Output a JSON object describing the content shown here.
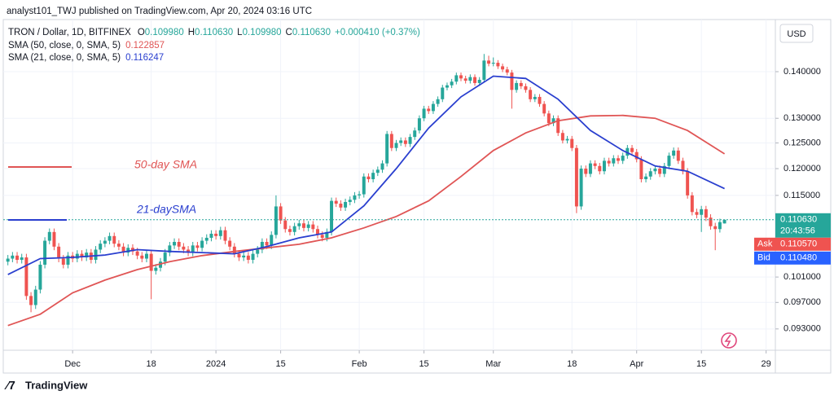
{
  "header": {
    "publisher": "analyst101_TWJ published on TradingView.com, Apr 20, 2024 03:16 UTC",
    "currency": "USD",
    "brand": "TradingView"
  },
  "chart_data": {
    "type": "candlestick",
    "title": "TRON / Dollar, 1D, BITFINEX",
    "ohlc": [
      {
        "key": "O",
        "value": "0.109980"
      },
      {
        "key": "H",
        "value": "0.110630"
      },
      {
        "key": "L",
        "value": "0.109980"
      },
      {
        "key": "C",
        "value": "0.110630"
      }
    ],
    "change": "+0.000410 (+0.37%)",
    "up_color": "#26a69a",
    "down_color": "#ef5350",
    "log_scale": true,
    "grid": true,
    "x": [
      "2023-11-17",
      "2023-11-18",
      "2023-11-19",
      "2023-11-20",
      "2023-11-21",
      "2023-11-22",
      "2023-11-23",
      "2023-11-24",
      "2023-11-25",
      "2023-11-26",
      "2023-11-27",
      "2023-11-28",
      "2023-11-29",
      "2023-11-30",
      "2023-12-01",
      "2023-12-02",
      "2023-12-03",
      "2023-12-04",
      "2023-12-05",
      "2023-12-06",
      "2023-12-07",
      "2023-12-08",
      "2023-12-09",
      "2023-12-10",
      "2023-12-11",
      "2023-12-12",
      "2023-12-13",
      "2023-12-14",
      "2023-12-15",
      "2023-12-16",
      "2023-12-17",
      "2023-12-18",
      "2023-12-19",
      "2023-12-20",
      "2023-12-21",
      "2023-12-22",
      "2023-12-23",
      "2023-12-24",
      "2023-12-25",
      "2023-12-26",
      "2023-12-27",
      "2023-12-28",
      "2023-12-29",
      "2023-12-30",
      "2023-12-31",
      "2024-01-01",
      "2024-01-02",
      "2024-01-03",
      "2024-01-04",
      "2024-01-05",
      "2024-01-06",
      "2024-01-07",
      "2024-01-08",
      "2024-01-09",
      "2024-01-10",
      "2024-01-11",
      "2024-01-12",
      "2024-01-13",
      "2024-01-14",
      "2024-01-15",
      "2024-01-16",
      "2024-01-17",
      "2024-01-18",
      "2024-01-19",
      "2024-01-20",
      "2024-01-21",
      "2024-01-22",
      "2024-01-23",
      "2024-01-24",
      "2024-01-25",
      "2024-01-26",
      "2024-01-27",
      "2024-01-28",
      "2024-01-29",
      "2024-01-30",
      "2024-01-31",
      "2024-02-01",
      "2024-02-02",
      "2024-02-03",
      "2024-02-04",
      "2024-02-05",
      "2024-02-06",
      "2024-02-07",
      "2024-02-08",
      "2024-02-09",
      "2024-02-10",
      "2024-02-11",
      "2024-02-12",
      "2024-02-13",
      "2024-02-14",
      "2024-02-15",
      "2024-02-16",
      "2024-02-17",
      "2024-02-18",
      "2024-02-19",
      "2024-02-20",
      "2024-02-21",
      "2024-02-22",
      "2024-02-23",
      "2024-02-24",
      "2024-02-25",
      "2024-02-26",
      "2024-02-27",
      "2024-02-28",
      "2024-02-29",
      "2024-03-01",
      "2024-03-02",
      "2024-03-03",
      "2024-03-04",
      "2024-03-05",
      "2024-03-06",
      "2024-03-07",
      "2024-03-08",
      "2024-03-09",
      "2024-03-10",
      "2024-03-11",
      "2024-03-12",
      "2024-03-13",
      "2024-03-14",
      "2024-03-15",
      "2024-03-16",
      "2024-03-17",
      "2024-03-18",
      "2024-03-19",
      "2024-03-20",
      "2024-03-21",
      "2024-03-22",
      "2024-03-23",
      "2024-03-24",
      "2024-03-25",
      "2024-03-26",
      "2024-03-27",
      "2024-03-28",
      "2024-03-29",
      "2024-03-30",
      "2024-03-31",
      "2024-04-01",
      "2024-04-02",
      "2024-04-03",
      "2024-04-04",
      "2024-04-05",
      "2024-04-06",
      "2024-04-07",
      "2024-04-08",
      "2024-04-09",
      "2024-04-10",
      "2024-04-11",
      "2024-04-12",
      "2024-04-13",
      "2024-04-14",
      "2024-04-15",
      "2024-04-16",
      "2024-04-17",
      "2024-04-18",
      "2024-04-19",
      "2024-04-20"
    ],
    "open": [
      0.1035,
      0.104,
      0.1045,
      0.1038,
      0.1042,
      0.098,
      0.0966,
      0.099,
      0.103,
      0.107,
      0.1085,
      0.106,
      0.104,
      0.103,
      0.1045,
      0.104,
      0.1048,
      0.1042,
      0.105,
      0.1038,
      0.1055,
      0.1065,
      0.107,
      0.1078,
      0.1065,
      0.106,
      0.105,
      0.1058,
      0.1052,
      0.1045,
      0.104,
      0.1048,
      0.102,
      0.1025,
      0.1035,
      0.105,
      0.1062,
      0.1068,
      0.106,
      0.1055,
      0.105,
      0.1062,
      0.1058,
      0.107,
      0.1075,
      0.1082,
      0.1078,
      0.1088,
      0.107,
      0.106,
      0.1048,
      0.1042,
      0.1045,
      0.1038,
      0.1048,
      0.1055,
      0.1068,
      0.1062,
      0.108,
      0.113,
      0.1105,
      0.109,
      0.1085,
      0.1095,
      0.11,
      0.1092,
      0.1098,
      0.109,
      0.108,
      0.1075,
      0.1085,
      0.114,
      0.1135,
      0.1128,
      0.1138,
      0.1142,
      0.115,
      0.1152,
      0.1185,
      0.118,
      0.1192,
      0.1198,
      0.121,
      0.1268,
      0.124,
      0.125,
      0.1255,
      0.1248,
      0.1262,
      0.1275,
      0.13,
      0.132,
      0.1315,
      0.133,
      0.134,
      0.1365,
      0.137,
      0.1378,
      0.1392,
      0.1385,
      0.138,
      0.1388,
      0.1375,
      0.1382,
      0.1425,
      0.1418,
      0.142,
      0.1412,
      0.1405,
      0.1398,
      0.136,
      0.1375,
      0.1368,
      0.136,
      0.134,
      0.1345,
      0.133,
      0.131,
      0.129,
      0.13,
      0.127,
      0.1255,
      0.1258,
      0.124,
      0.113,
      0.12,
      0.119,
      0.121,
      0.1205,
      0.1195,
      0.1215,
      0.121,
      0.122,
      0.1215,
      0.1225,
      0.124,
      0.1232,
      0.1218,
      0.118,
      0.1185,
      0.1195,
      0.12,
      0.119,
      0.1205,
      0.1225,
      0.1235,
      0.1215,
      0.1195,
      0.115,
      0.112,
      0.1115,
      0.1125,
      0.111,
      0.1095,
      0.109,
      0.10998
    ],
    "high": [
      0.1046,
      0.1051,
      0.1051,
      0.1048,
      0.1048,
      0.0986,
      0.0996,
      0.1036,
      0.1076,
      0.1091,
      0.1091,
      0.1066,
      0.1046,
      0.1051,
      0.1051,
      0.1054,
      0.1054,
      0.1056,
      0.1056,
      0.1061,
      0.1071,
      0.1076,
      0.1084,
      0.1084,
      0.1071,
      0.1066,
      0.1064,
      0.1064,
      0.1058,
      0.1051,
      0.1054,
      0.1054,
      0.1031,
      0.1041,
      0.1056,
      0.1068,
      0.1074,
      0.1074,
      0.1066,
      0.1061,
      0.1068,
      0.1068,
      0.1076,
      0.1081,
      0.1088,
      0.1088,
      0.1094,
      0.1094,
      0.1076,
      0.1066,
      0.1054,
      0.1051,
      0.1051,
      0.1054,
      0.1061,
      0.1074,
      0.1074,
      0.1086,
      0.115,
      0.1136,
      0.1111,
      0.1096,
      0.1101,
      0.1106,
      0.1106,
      0.1104,
      0.1104,
      0.1096,
      0.1086,
      0.1091,
      0.1146,
      0.1146,
      0.1141,
      0.1144,
      0.1148,
      0.1156,
      0.1158,
      0.1191,
      0.1191,
      0.1198,
      0.1204,
      0.1216,
      0.1274,
      0.1274,
      0.1256,
      0.1261,
      0.1261,
      0.1268,
      0.1281,
      0.1306,
      0.1326,
      0.1326,
      0.1336,
      0.1346,
      0.1371,
      0.1376,
      0.1384,
      0.1398,
      0.1398,
      0.1391,
      0.1394,
      0.1394,
      0.1388,
      0.144,
      0.1436,
      0.1432,
      0.1426,
      0.1418,
      0.1411,
      0.1404,
      0.1381,
      0.1381,
      0.1374,
      0.1366,
      0.1351,
      0.1351,
      0.1336,
      0.1316,
      0.1306,
      0.1306,
      0.1276,
      0.1264,
      0.1264,
      0.1246,
      0.1206,
      0.1206,
      0.1216,
      0.1216,
      0.1211,
      0.1221,
      0.1221,
      0.1226,
      0.1226,
      0.1231,
      0.1246,
      0.1246,
      0.1238,
      0.1224,
      0.1191,
      0.1201,
      0.1206,
      0.1206,
      0.1211,
      0.1231,
      0.1241,
      0.1241,
      0.1221,
      0.1201,
      0.1156,
      0.1126,
      0.1131,
      0.1131,
      0.1116,
      0.1101,
      0.11082,
      0.11063
    ],
    "low": [
      0.1029,
      0.1034,
      0.1032,
      0.1032,
      0.0974,
      0.0955,
      0.096,
      0.0984,
      0.1024,
      0.1064,
      0.1054,
      0.1034,
      0.1024,
      0.1024,
      0.1034,
      0.1034,
      0.1036,
      0.1036,
      0.1032,
      0.1032,
      0.1049,
      0.1059,
      0.1064,
      0.1059,
      0.1054,
      0.1044,
      0.1044,
      0.1046,
      0.1039,
      0.1034,
      0.1034,
      0.0975,
      0.1014,
      0.1019,
      0.1029,
      0.1044,
      0.1056,
      0.1054,
      0.1049,
      0.1044,
      0.1044,
      0.1052,
      0.1052,
      0.1064,
      0.1069,
      0.1072,
      0.1072,
      0.1064,
      0.1054,
      0.1042,
      0.1036,
      0.1036,
      0.1032,
      0.1032,
      0.1042,
      0.1049,
      0.1056,
      0.1056,
      0.1074,
      0.1099,
      0.1084,
      0.1079,
      0.1079,
      0.1089,
      0.1086,
      0.1086,
      0.1084,
      0.1074,
      0.1069,
      0.1069,
      0.1079,
      0.1129,
      0.1122,
      0.1122,
      0.1132,
      0.1136,
      0.1144,
      0.1146,
      0.1174,
      0.1174,
      0.1186,
      0.1192,
      0.1204,
      0.1234,
      0.1234,
      0.1244,
      0.1242,
      0.1242,
      0.1256,
      0.1269,
      0.1294,
      0.1309,
      0.1309,
      0.1324,
      0.1334,
      0.1359,
      0.1364,
      0.1372,
      0.1379,
      0.1374,
      0.1374,
      0.1369,
      0.1369,
      0.1376,
      0.1412,
      0.1412,
      0.1406,
      0.1399,
      0.1392,
      0.132,
      0.1354,
      0.1362,
      0.1354,
      0.1334,
      0.1334,
      0.1324,
      0.1304,
      0.1284,
      0.1284,
      0.1264,
      0.1249,
      0.1249,
      0.1234,
      0.1118,
      0.1124,
      0.1184,
      0.1184,
      0.1199,
      0.1189,
      0.1189,
      0.1204,
      0.1204,
      0.1209,
      0.1209,
      0.1219,
      0.1226,
      0.1212,
      0.1174,
      0.1174,
      0.1179,
      0.1189,
      0.1184,
      0.1184,
      0.1199,
      0.1219,
      0.1209,
      0.1189,
      0.1144,
      0.1114,
      0.1109,
      0.1085,
      0.1104,
      0.1089,
      0.1054,
      0.1084,
      0.10998
    ],
    "close": [
      0.104,
      0.1045,
      0.1038,
      0.1042,
      0.098,
      0.0966,
      0.099,
      0.103,
      0.107,
      0.1085,
      0.106,
      0.104,
      0.103,
      0.1045,
      0.104,
      0.1048,
      0.1042,
      0.105,
      0.1038,
      0.1055,
      0.1065,
      0.107,
      0.1078,
      0.1065,
      0.106,
      0.105,
      0.1058,
      0.1052,
      0.1045,
      0.104,
      0.1048,
      0.102,
      0.1025,
      0.1035,
      0.105,
      0.1062,
      0.1068,
      0.106,
      0.1055,
      0.105,
      0.1062,
      0.1058,
      0.107,
      0.1075,
      0.1082,
      0.1078,
      0.1088,
      0.107,
      0.106,
      0.1048,
      0.1042,
      0.1045,
      0.1038,
      0.1048,
      0.1055,
      0.1068,
      0.1062,
      0.108,
      0.113,
      0.1105,
      0.109,
      0.1085,
      0.1095,
      0.11,
      0.1092,
      0.1098,
      0.109,
      0.108,
      0.1075,
      0.1085,
      0.114,
      0.1135,
      0.1128,
      0.1138,
      0.1142,
      0.115,
      0.1152,
      0.1185,
      0.118,
      0.1192,
      0.1198,
      0.121,
      0.1268,
      0.124,
      0.125,
      0.1255,
      0.1248,
      0.1262,
      0.1275,
      0.13,
      0.132,
      0.1315,
      0.133,
      0.134,
      0.1365,
      0.137,
      0.1378,
      0.1392,
      0.1385,
      0.138,
      0.1388,
      0.1375,
      0.1382,
      0.1425,
      0.1418,
      0.142,
      0.1412,
      0.1405,
      0.1398,
      0.136,
      0.1375,
      0.1368,
      0.136,
      0.134,
      0.1345,
      0.133,
      0.131,
      0.129,
      0.13,
      0.127,
      0.1255,
      0.1258,
      0.124,
      0.113,
      0.12,
      0.119,
      0.121,
      0.1205,
      0.1195,
      0.1215,
      0.121,
      0.122,
      0.1215,
      0.1225,
      0.124,
      0.1232,
      0.1218,
      0.118,
      0.1185,
      0.1195,
      0.12,
      0.119,
      0.1205,
      0.1225,
      0.1235,
      0.1215,
      0.1195,
      0.115,
      0.112,
      0.1115,
      0.1125,
      0.111,
      0.1095,
      0.109,
      0.11022,
      0.11063
    ],
    "series": [
      {
        "name": "SMA (50, close, 0, SMA, 5)",
        "last_label": "0.122857",
        "color": "#e05555",
        "x": [
          "2023-11-17",
          "2023-11-24",
          "2023-12-01",
          "2023-12-08",
          "2023-12-15",
          "2023-12-22",
          "2023-12-29",
          "2024-01-05",
          "2024-01-12",
          "2024-01-19",
          "2024-01-26",
          "2024-02-02",
          "2024-02-09",
          "2024-02-16",
          "2024-02-23",
          "2024-03-01",
          "2024-03-08",
          "2024-03-15",
          "2024-03-22",
          "2024-03-29",
          "2024-04-05",
          "2024-04-12",
          "2024-04-20"
        ],
        "values": [
          0.0935,
          0.0952,
          0.0985,
          0.1005,
          0.1022,
          0.1035,
          0.1045,
          0.1052,
          0.1058,
          0.1064,
          0.1075,
          0.1092,
          0.1112,
          0.114,
          0.1185,
          0.1235,
          0.127,
          0.1295,
          0.1305,
          0.1306,
          0.13,
          0.1275,
          0.122857
        ]
      },
      {
        "name": "SMA (21, close, 0, SMA, 5)",
        "last_label": "0.116247",
        "color": "#2a3fcf",
        "x": [
          "2023-11-17",
          "2023-11-24",
          "2023-12-01",
          "2023-12-08",
          "2023-12-15",
          "2023-12-22",
          "2023-12-29",
          "2024-01-05",
          "2024-01-12",
          "2024-01-19",
          "2024-01-26",
          "2024-02-02",
          "2024-02-09",
          "2024-02-16",
          "2024-02-23",
          "2024-03-01",
          "2024-03-08",
          "2024-03-15",
          "2024-03-22",
          "2024-03-29",
          "2024-04-05",
          "2024-04-12",
          "2024-04-20"
        ],
        "values": [
          0.1014,
          0.104,
          0.1042,
          0.1046,
          0.1055,
          0.1052,
          0.105,
          0.1048,
          0.106,
          0.1075,
          0.1085,
          0.1131,
          0.12,
          0.128,
          0.1345,
          0.139,
          0.1385,
          0.134,
          0.1275,
          0.1235,
          0.1205,
          0.1195,
          0.116247
        ]
      }
    ],
    "annotations": [
      {
        "text": "50-day SMA",
        "series": 0
      },
      {
        "text": "21-daySMA",
        "series": 1
      }
    ],
    "ylim": [
      0.0899,
      0.1521
    ],
    "yticks": [
      {
        "value": 0.093,
        "label": "0.093000"
      },
      {
        "value": 0.097,
        "label": "0.097000"
      },
      {
        "value": 0.101,
        "label": "0.101000"
      },
      {
        "value": 0.115,
        "label": "0.115000"
      },
      {
        "value": 0.12,
        "label": "0.120000"
      },
      {
        "value": 0.125,
        "label": "0.125000"
      },
      {
        "value": 0.13,
        "label": "0.130000"
      },
      {
        "value": 0.14,
        "label": "0.140000"
      }
    ],
    "xlim": [
      "2023-11-16",
      "2024-05-01"
    ],
    "xticks": [
      {
        "value": "2023-12-01",
        "label": "Dec"
      },
      {
        "value": "2023-12-18",
        "label": "18"
      },
      {
        "value": "2024-01-01",
        "label": "2024"
      },
      {
        "value": "2024-01-15",
        "label": "15"
      },
      {
        "value": "2024-02-01",
        "label": "Feb"
      },
      {
        "value": "2024-02-15",
        "label": "15"
      },
      {
        "value": "2024-03-01",
        "label": "Mar"
      },
      {
        "value": "2024-03-18",
        "label": "18"
      },
      {
        "value": "2024-04-01",
        "label": "Apr"
      },
      {
        "value": "2024-04-15",
        "label": "15"
      },
      {
        "value": "2024-04-29",
        "label": "29"
      }
    ],
    "last_price_label": "0.110630",
    "countdown": "20:43:56",
    "ask": {
      "name": "Ask",
      "label": "0.110570"
    },
    "bid": {
      "name": "Bid",
      "label": "0.110480"
    }
  }
}
